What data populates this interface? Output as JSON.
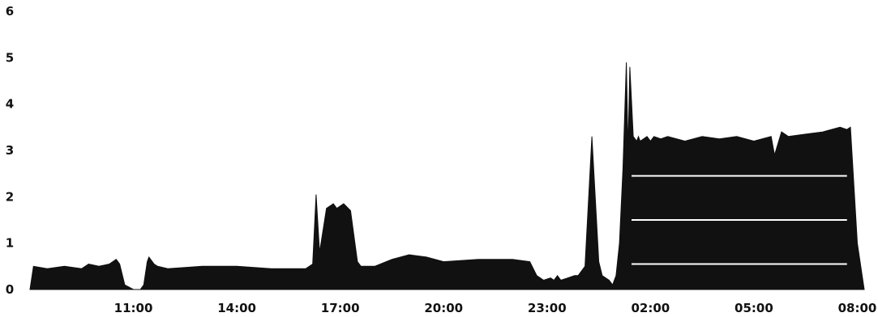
{
  "chart_data": {
    "type": "area",
    "title": "",
    "xlabel": "",
    "ylabel": "",
    "ylim": [
      0,
      6
    ],
    "yticks": [
      "0",
      "1",
      "2",
      "3",
      "4",
      "5",
      "6"
    ],
    "xticks": [
      "11:00",
      "14:00",
      "17:00",
      "20:00",
      "23:00",
      "02:00",
      "05:00",
      "08:00"
    ],
    "x_unit": "hours since 08:00 (first day)",
    "grid": false,
    "colors": {
      "fill": "#111111",
      "background": "#ffffff"
    },
    "series": [
      {
        "x": [
          0.0,
          0.1,
          0.5,
          1.0,
          1.5,
          1.7,
          2.0,
          2.3,
          2.5,
          2.6,
          2.75,
          3.0,
          3.2,
          3.3,
          3.4,
          3.45,
          3.6,
          3.7,
          4.0,
          5.0,
          6.0,
          7.0,
          8.0,
          8.2,
          8.3,
          8.4,
          8.6,
          8.8,
          8.9,
          9.1,
          9.3,
          9.5,
          9.6,
          9.7,
          10.0,
          10.5,
          11.0,
          11.5,
          12.0,
          13.0,
          14.0,
          14.5,
          14.7,
          14.9,
          15.1,
          15.2,
          15.3,
          15.4,
          15.6,
          15.8,
          15.9,
          16.1,
          16.3,
          16.5,
          16.6,
          16.8,
          16.9,
          17.0,
          17.1,
          17.2,
          17.3,
          17.35,
          17.4,
          17.5,
          17.6,
          17.65,
          17.7,
          17.8,
          17.9,
          18.0,
          18.1,
          18.3,
          18.5,
          19.0,
          19.5,
          20.0,
          20.5,
          21.0,
          21.5,
          21.6,
          21.8,
          22.0,
          22.5,
          23.0,
          23.5,
          23.7,
          23.8,
          24.0,
          24.2
        ],
        "y": [
          0.0,
          0.5,
          0.45,
          0.5,
          0.45,
          0.55,
          0.5,
          0.55,
          0.65,
          0.55,
          0.1,
          0.0,
          0.0,
          0.1,
          0.6,
          0.7,
          0.55,
          0.5,
          0.45,
          0.5,
          0.5,
          0.45,
          0.45,
          0.55,
          2.05,
          0.8,
          1.75,
          1.85,
          1.75,
          1.85,
          1.7,
          0.6,
          0.5,
          0.5,
          0.5,
          0.65,
          0.75,
          0.7,
          0.6,
          0.65,
          0.65,
          0.6,
          0.3,
          0.2,
          0.25,
          0.2,
          0.3,
          0.2,
          0.25,
          0.3,
          0.3,
          0.5,
          3.3,
          0.6,
          0.3,
          0.2,
          0.1,
          0.3,
          1.0,
          2.6,
          4.9,
          3.0,
          4.8,
          3.3,
          3.2,
          3.3,
          3.2,
          3.25,
          3.3,
          3.2,
          3.3,
          3.25,
          3.3,
          3.2,
          3.3,
          3.25,
          3.3,
          3.2,
          3.3,
          2.9,
          3.4,
          3.3,
          3.35,
          3.4,
          3.5,
          3.45,
          3.5,
          1.0,
          0.0
        ]
      }
    ]
  }
}
